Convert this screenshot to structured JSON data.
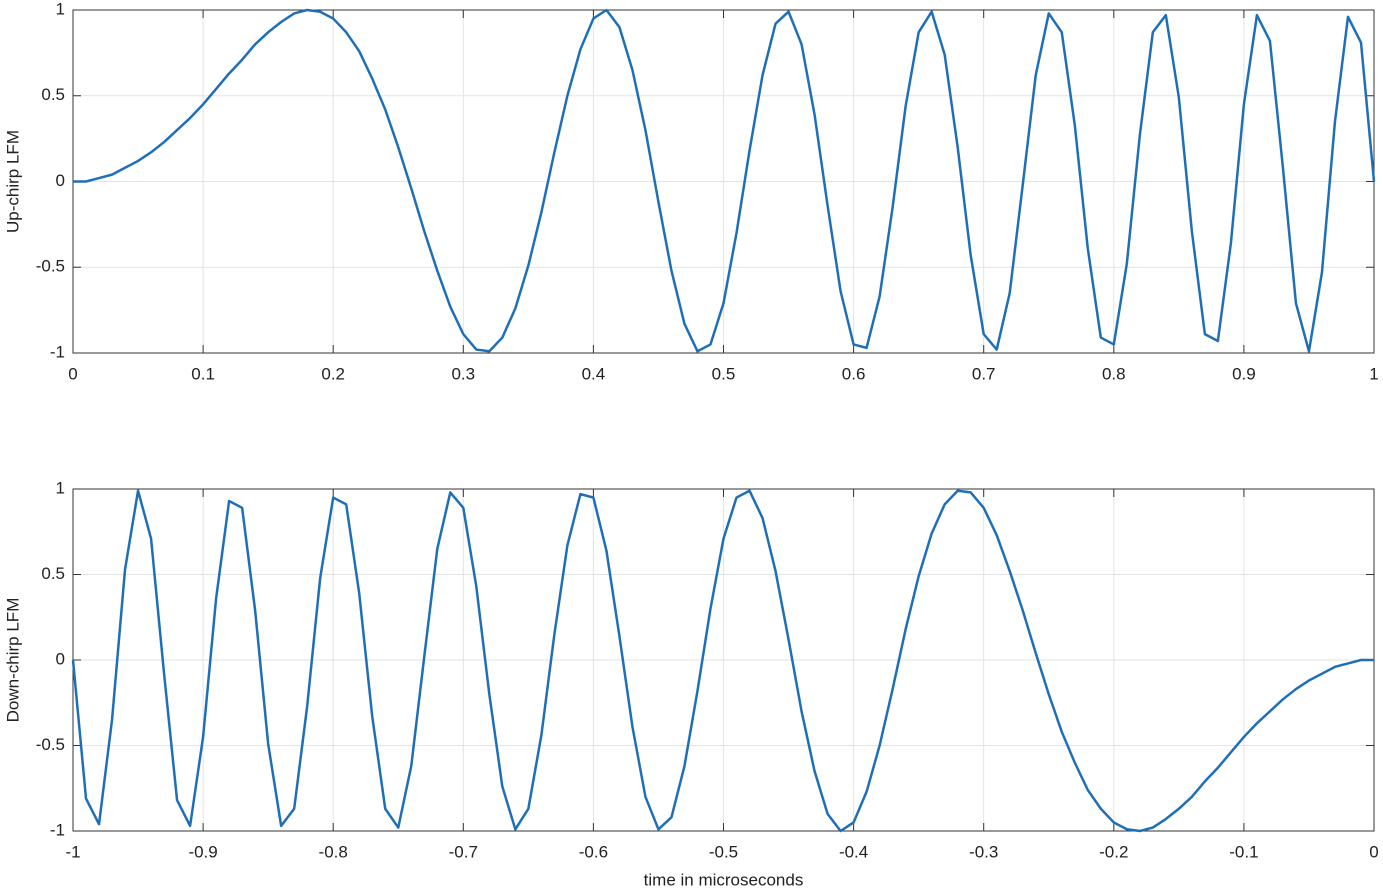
{
  "chart_data": [
    {
      "type": "line",
      "ylabel": "Up-chirp LFM",
      "grid": true,
      "xlim": [
        0,
        1
      ],
      "ylim": [
        -1,
        1
      ],
      "xticks": [
        0,
        0.1,
        0.2,
        0.3,
        0.4,
        0.5,
        0.6,
        0.7,
        0.8,
        0.9,
        1
      ],
      "yticks": [
        -1,
        -0.5,
        0,
        0.5,
        1
      ],
      "x": [
        0,
        0.01,
        0.02,
        0.03,
        0.04,
        0.05,
        0.06,
        0.07,
        0.08,
        0.09,
        0.1,
        0.11,
        0.12,
        0.13,
        0.14,
        0.15,
        0.16,
        0.17,
        0.18,
        0.19,
        0.2,
        0.21,
        0.22,
        0.23,
        0.24,
        0.25,
        0.26,
        0.27,
        0.28,
        0.29,
        0.3,
        0.31,
        0.32,
        0.33,
        0.34,
        0.35,
        0.36,
        0.37,
        0.38,
        0.39,
        0.4,
        0.41,
        0.42,
        0.43,
        0.44,
        0.45,
        0.46,
        0.47,
        0.48,
        0.49,
        0.5,
        0.51,
        0.52,
        0.53,
        0.54,
        0.55,
        0.56,
        0.57,
        0.58,
        0.59,
        0.6,
        0.61,
        0.62,
        0.63,
        0.64,
        0.65,
        0.66,
        0.67,
        0.68,
        0.69,
        0.7,
        0.71,
        0.72,
        0.73,
        0.74,
        0.75,
        0.76,
        0.77,
        0.78,
        0.79,
        0.8,
        0.81,
        0.82,
        0.83,
        0.84,
        0.85,
        0.86,
        0.87,
        0.88,
        0.89,
        0.9,
        0.91,
        0.92,
        0.93,
        0.94,
        0.95,
        0.96,
        0.97,
        0.98,
        0.99,
        1
      ],
      "series": [
        {
          "color": "#1f6fb8",
          "values": [
            0,
            0,
            0.02,
            0.04,
            0.08,
            0.12,
            0.17,
            0.23,
            0.3,
            0.37,
            0.45,
            0.54,
            0.63,
            0.71,
            0.8,
            0.87,
            0.93,
            0.98,
            1,
            0.99,
            0.95,
            0.87,
            0.76,
            0.6,
            0.42,
            0.2,
            -0.04,
            -0.29,
            -0.52,
            -0.73,
            -0.89,
            -0.98,
            -0.99,
            -0.91,
            -0.74,
            -0.49,
            -0.18,
            0.17,
            0.5,
            0.77,
            0.95,
            1,
            0.9,
            0.65,
            0.3,
            -0.12,
            -0.52,
            -0.83,
            -0.99,
            -0.95,
            -0.71,
            -0.3,
            0.18,
            0.62,
            0.92,
            0.99,
            0.8,
            0.39,
            -0.14,
            -0.64,
            -0.95,
            -0.97,
            -0.67,
            -0.15,
            0.44,
            0.87,
            0.99,
            0.74,
            0.2,
            -0.43,
            -0.89,
            -0.98,
            -0.65,
            -0.02,
            0.62,
            0.98,
            0.87,
            0.33,
            -0.39,
            -0.91,
            -0.95,
            -0.48,
            0.27,
            0.87,
            0.97,
            0.49,
            -0.29,
            -0.89,
            -0.93,
            -0.36,
            0.45,
            0.97,
            0.82,
            0.08,
            -0.71,
            -0.99,
            -0.53,
            0.35,
            0.96,
            0.81,
            0
          ]
        }
      ]
    },
    {
      "type": "line",
      "ylabel": "Down-chirp LFM",
      "xlabel": "time in microseconds",
      "grid": true,
      "xlim": [
        -1,
        0
      ],
      "ylim": [
        -1,
        1
      ],
      "xticks": [
        -1,
        -0.9,
        -0.8,
        -0.7,
        -0.6,
        -0.5,
        -0.4,
        -0.3,
        -0.2,
        -0.1,
        0
      ],
      "yticks": [
        -1,
        -0.5,
        0,
        0.5,
        1
      ],
      "x": [
        -1,
        -0.99,
        -0.98,
        -0.97,
        -0.96,
        -0.95,
        -0.94,
        -0.93,
        -0.92,
        -0.91,
        -0.9,
        -0.89,
        -0.88,
        -0.87,
        -0.86,
        -0.85,
        -0.84,
        -0.83,
        -0.82,
        -0.81,
        -0.8,
        -0.79,
        -0.78,
        -0.77,
        -0.76,
        -0.75,
        -0.74,
        -0.73,
        -0.72,
        -0.71,
        -0.7,
        -0.69,
        -0.68,
        -0.67,
        -0.66,
        -0.65,
        -0.64,
        -0.63,
        -0.62,
        -0.61,
        -0.6,
        -0.59,
        -0.58,
        -0.57,
        -0.56,
        -0.55,
        -0.54,
        -0.53,
        -0.52,
        -0.51,
        -0.5,
        -0.49,
        -0.48,
        -0.47,
        -0.46,
        -0.45,
        -0.44,
        -0.43,
        -0.42,
        -0.41,
        -0.4,
        -0.39,
        -0.38,
        -0.37,
        -0.36,
        -0.35,
        -0.34,
        -0.33,
        -0.32,
        -0.31,
        -0.3,
        -0.29,
        -0.28,
        -0.27,
        -0.26,
        -0.25,
        -0.24,
        -0.23,
        -0.22,
        -0.21,
        -0.2,
        -0.19,
        -0.18,
        -0.17,
        -0.16,
        -0.15,
        -0.14,
        -0.13,
        -0.12,
        -0.11,
        -0.1,
        -0.09,
        -0.08,
        -0.07,
        -0.06,
        -0.05,
        -0.04,
        -0.03,
        -0.02,
        -0.01,
        0
      ],
      "series": [
        {
          "color": "#1f6fb8",
          "values": [
            0,
            -0.81,
            -0.96,
            -0.35,
            0.53,
            0.99,
            0.71,
            -0.08,
            -0.82,
            -0.97,
            -0.45,
            0.36,
            0.93,
            0.89,
            0.29,
            -0.49,
            -0.97,
            -0.87,
            -0.27,
            0.48,
            0.95,
            0.91,
            0.39,
            -0.33,
            -0.87,
            -0.98,
            -0.62,
            0.02,
            0.65,
            0.98,
            0.89,
            0.43,
            -0.2,
            -0.74,
            -0.99,
            -0.87,
            -0.44,
            0.15,
            0.67,
            0.97,
            0.95,
            0.64,
            0.14,
            -0.39,
            -0.8,
            -0.99,
            -0.92,
            -0.62,
            -0.18,
            0.3,
            0.71,
            0.95,
            0.99,
            0.83,
            0.52,
            0.12,
            -0.3,
            -0.65,
            -0.9,
            -1,
            -0.95,
            -0.77,
            -0.5,
            -0.17,
            0.18,
            0.49,
            0.74,
            0.91,
            0.99,
            0.98,
            0.89,
            0.73,
            0.52,
            0.29,
            0.04,
            -0.2,
            -0.42,
            -0.6,
            -0.76,
            -0.87,
            -0.95,
            -0.99,
            -1,
            -0.98,
            -0.93,
            -0.87,
            -0.8,
            -0.71,
            -0.63,
            -0.54,
            -0.45,
            -0.37,
            -0.3,
            -0.23,
            -0.17,
            -0.12,
            -0.08,
            -0.04,
            -0.02,
            0,
            0
          ]
        }
      ]
    }
  ]
}
